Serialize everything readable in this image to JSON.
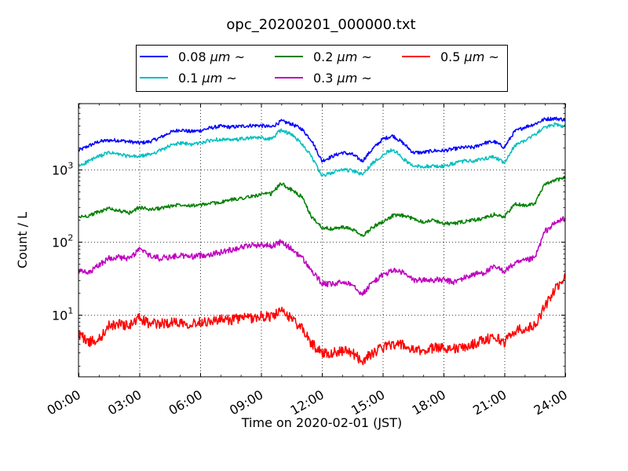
{
  "chart_data": {
    "type": "line",
    "title": "opc_20200201_000000.txt",
    "xlabel": "Time on 2020-02-01 (JST)",
    "ylabel": "Count / L",
    "yscale": "log",
    "xlim": [
      "00:00",
      "24:00"
    ],
    "ylim": [
      1.4,
      8000
    ],
    "grid": true,
    "legend_position": "top",
    "x_tick_labels": [
      "00:00",
      "03:00",
      "06:00",
      "09:00",
      "12:00",
      "15:00",
      "18:00",
      "21:00",
      "24:00"
    ],
    "y_tick_labels": [
      {
        "value": 10,
        "base": "10",
        "exp": "1"
      },
      {
        "value": 100,
        "base": "10",
        "exp": "2"
      },
      {
        "value": 1000,
        "base": "10",
        "exp": "3"
      }
    ],
    "x_hours": [
      0,
      0.5,
      1,
      1.5,
      2,
      2.5,
      3,
      3.5,
      4,
      4.5,
      5,
      5.5,
      6,
      6.5,
      7,
      7.5,
      8,
      8.5,
      9,
      9.5,
      10,
      10.5,
      11,
      11.5,
      12,
      12.5,
      13,
      13.5,
      14,
      14.5,
      15,
      15.5,
      16,
      16.5,
      17,
      17.5,
      18,
      18.5,
      19,
      19.5,
      20,
      20.5,
      21,
      21.5,
      22,
      22.5,
      23,
      23.5,
      24
    ],
    "series": [
      {
        "name": "0.08 μm ~",
        "label_text": "0.08",
        "unit_text": "μm ~",
        "color": "#0000ff",
        "values": [
          1800,
          2100,
          2400,
          2500,
          2500,
          2400,
          2300,
          2400,
          2700,
          3200,
          3500,
          3300,
          3400,
          3700,
          3900,
          3800,
          3900,
          4000,
          4000,
          3800,
          4600,
          4200,
          3600,
          2500,
          1300,
          1500,
          1700,
          1600,
          1300,
          1900,
          2600,
          2900,
          2300,
          1700,
          1700,
          1800,
          1800,
          1900,
          2000,
          2000,
          2300,
          2400,
          2000,
          3300,
          3800,
          4200,
          4900,
          5000,
          4800
        ]
      },
      {
        "name": "0.1 μm ~",
        "label_text": "0.1",
        "unit_text": "μm ~",
        "color": "#00bfbf",
        "values": [
          1100,
          1300,
          1500,
          1700,
          1600,
          1500,
          1500,
          1600,
          1800,
          2100,
          2300,
          2200,
          2300,
          2500,
          2600,
          2500,
          2600,
          2700,
          2700,
          2600,
          3500,
          3000,
          2300,
          1500,
          800,
          900,
          1000,
          950,
          850,
          1200,
          1600,
          1900,
          1400,
          1100,
          1100,
          1100,
          1100,
          1200,
          1300,
          1300,
          1400,
          1500,
          1200,
          2100,
          2500,
          3000,
          3800,
          4100,
          3900
        ]
      },
      {
        "name": "0.2 μm ~",
        "label_text": "0.2",
        "unit_text": "μm ~",
        "color": "#008000",
        "values": [
          220,
          230,
          260,
          290,
          270,
          250,
          300,
          280,
          290,
          310,
          330,
          320,
          320,
          340,
          350,
          380,
          400,
          420,
          450,
          460,
          640,
          520,
          420,
          220,
          160,
          150,
          160,
          150,
          120,
          160,
          190,
          230,
          230,
          210,
          190,
          200,
          180,
          180,
          190,
          200,
          210,
          240,
          220,
          330,
          320,
          340,
          620,
          700,
          780
        ]
      },
      {
        "name": "0.3 μm ~",
        "label_text": "0.3",
        "unit_text": "μm ~",
        "color": "#bf00bf",
        "values": [
          40,
          37,
          48,
          60,
          62,
          58,
          80,
          65,
          60,
          62,
          65,
          63,
          65,
          68,
          72,
          78,
          85,
          90,
          92,
          88,
          100,
          80,
          62,
          40,
          27,
          26,
          28,
          27,
          19,
          28,
          35,
          41,
          38,
          30,
          30,
          30,
          30,
          28,
          32,
          36,
          38,
          45,
          40,
          50,
          55,
          60,
          140,
          180,
          215
        ]
      },
      {
        "name": "0.5 μm ~",
        "label_text": "0.5",
        "unit_text": "μm ~",
        "color": "#ff0000",
        "values": [
          5.5,
          4.2,
          4.5,
          7,
          7.5,
          7,
          9,
          7.5,
          7.5,
          7.8,
          8,
          7.5,
          8,
          8.2,
          8.5,
          8.5,
          9,
          9,
          9.5,
          9.5,
          11,
          9,
          6.5,
          4,
          3,
          3,
          3.2,
          3,
          2.3,
          3,
          3.5,
          4,
          3.8,
          3.2,
          3.2,
          3.5,
          3.6,
          3.4,
          3.5,
          4,
          4.5,
          5,
          4.2,
          6,
          6.5,
          7,
          13,
          22,
          33
        ]
      }
    ]
  }
}
